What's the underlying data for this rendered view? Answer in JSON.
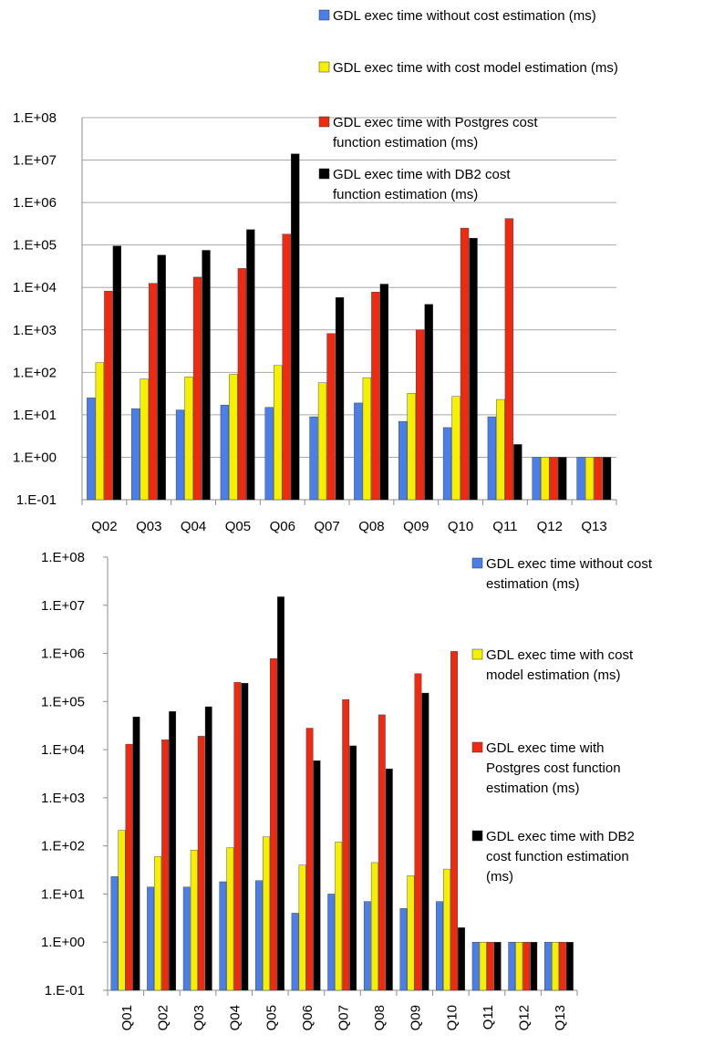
{
  "colors": {
    "without": "#4a7ee8",
    "cost_model": "#f5f000",
    "postgres": "#ee2a12",
    "db2": "#000000",
    "grid": "#a8a8a8",
    "axis": "#8c8c8c"
  },
  "chart_data": [
    {
      "type": "bar",
      "y_scale": "log",
      "ylim": [
        0.1,
        100000000
      ],
      "y_tick_labels": [
        "1.E-01",
        "1.E+00",
        "1.E+01",
        "1.E+02",
        "1.E+03",
        "1.E+04",
        "1.E+05",
        "1.E+06",
        "1.E+07",
        "1.E+08"
      ],
      "grid": true,
      "legend_position": "top-right",
      "categories": [
        "Q02",
        "Q03",
        "Q04",
        "Q05",
        "Q06",
        "Q07",
        "Q08",
        "Q09",
        "Q10",
        "Q11",
        "Q12",
        "Q13"
      ],
      "series": [
        {
          "name": "GDL exec time without cost estimation (ms)",
          "color_key": "without",
          "values": [
            25,
            14,
            13,
            17,
            15,
            9,
            19,
            7,
            5,
            9,
            1,
            1
          ]
        },
        {
          "name": "GDL exec time with cost model estimation (ms)",
          "color_key": "cost_model",
          "values": [
            170,
            70,
            78,
            90,
            145,
            57,
            75,
            32,
            27,
            23,
            1,
            1
          ]
        },
        {
          "name": "GDL exec time with Postgres cost function estimation (ms)",
          "color_key": "postgres",
          "values": [
            8200,
            12500,
            17500,
            28000,
            180000,
            820,
            7800,
            1000,
            250000,
            420000,
            1,
            1
          ]
        },
        {
          "name": "GDL exec time with DB2 cost function estimation (ms)",
          "color_key": "db2",
          "values": [
            95000,
            58000,
            75000,
            230000,
            14000000,
            5800,
            12000,
            4000,
            145000,
            2,
            1,
            1
          ]
        }
      ]
    },
    {
      "type": "bar",
      "y_scale": "log",
      "ylim": [
        0.1,
        100000000
      ],
      "y_tick_labels": [
        "1.E-01",
        "1.E+00",
        "1.E+01",
        "1.E+02",
        "1.E+03",
        "1.E+04",
        "1.E+05",
        "1.E+06",
        "1.E+07",
        "1.E+08"
      ],
      "grid": false,
      "legend_position": "right",
      "categories": [
        "Q01",
        "Q02",
        "Q03",
        "Q04",
        "Q05",
        "Q06",
        "Q07",
        "Q08",
        "Q09",
        "Q10",
        "Q11",
        "Q12",
        "Q13"
      ],
      "series": [
        {
          "name": "GDL exec time without cost estimation (ms)",
          "color_key": "without",
          "values": [
            23,
            14,
            14,
            18,
            19,
            4,
            10,
            7,
            5,
            7,
            1,
            1,
            1
          ]
        },
        {
          "name": "GDL exec time with cost model estimation (ms)",
          "color_key": "cost_model",
          "values": [
            210,
            60,
            82,
            92,
            155,
            40,
            120,
            45,
            24,
            33,
            1,
            1,
            1
          ]
        },
        {
          "name": "GDL exec time with Postgres cost function estimation (ms)",
          "color_key": "postgres",
          "values": [
            13000,
            16000,
            19000,
            250000,
            780000,
            28000,
            110000,
            53000,
            380000,
            1100000,
            1,
            1,
            1
          ]
        },
        {
          "name": "GDL exec time with DB2 cost function estimation (ms)",
          "color_key": "db2",
          "values": [
            48000,
            62000,
            78000,
            240000,
            15000000,
            5900,
            12000,
            4000,
            150000,
            2,
            1,
            1,
            1
          ]
        }
      ]
    }
  ]
}
